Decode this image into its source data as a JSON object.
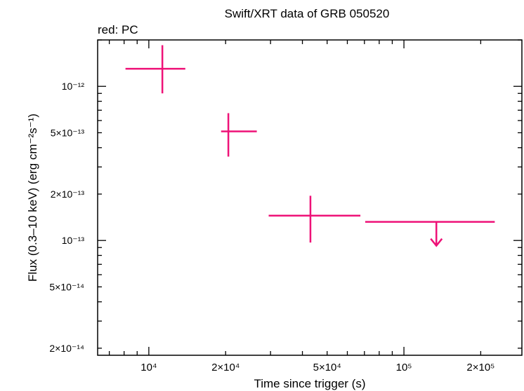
{
  "chart_data": {
    "type": "scatter",
    "title": "Swift/XRT data of GRB 050520",
    "subtitle": "red: PC",
    "xlabel": "Time since trigger (s)",
    "ylabel": "Flux (0.3–10 keV) (erg cm⁻²s⁻¹)",
    "x_scale": "log",
    "y_scale": "log",
    "xlim": [
      6300,
      290000
    ],
    "ylim": [
      1.8e-14,
      2e-12
    ],
    "grid": false,
    "legend": "none",
    "x_ticks": [
      {
        "value": 10000,
        "label": "10⁴"
      },
      {
        "value": 20000,
        "label": "2×10⁴"
      },
      {
        "value": 50000,
        "label": "5×10⁴"
      },
      {
        "value": 100000,
        "label": "10⁵"
      },
      {
        "value": 200000,
        "label": "2×10⁵"
      }
    ],
    "y_ticks": [
      {
        "value": 2e-14,
        "label": "2×10⁻¹⁴"
      },
      {
        "value": 5e-14,
        "label": "5×10⁻¹⁴"
      },
      {
        "value": 1e-13,
        "label": "10⁻¹³"
      },
      {
        "value": 2e-13,
        "label": "2×10⁻¹³"
      },
      {
        "value": 5e-13,
        "label": "5×10⁻¹³"
      },
      {
        "value": 1e-12,
        "label": "10⁻¹²"
      }
    ],
    "series": [
      {
        "name": "PC",
        "color": "#ee1177",
        "points": [
          {
            "x": 11300,
            "xmin": 8100,
            "xmax": 13900,
            "y": 1.3e-12,
            "ymin": 9e-13,
            "ymax": 1.85e-12
          },
          {
            "x": 20500,
            "xmin": 19200,
            "xmax": 26500,
            "y": 5.1e-13,
            "ymin": 3.5e-13,
            "ymax": 6.7e-13
          },
          {
            "x": 43000,
            "xmin": 29500,
            "xmax": 67500,
            "y": 1.45e-13,
            "ymin": 9.7e-14,
            "ymax": 1.95e-13
          },
          {
            "x": 134000,
            "xmin": 70500,
            "xmax": 227000,
            "y": 1.32e-13,
            "upper_limit": true
          }
        ]
      }
    ]
  }
}
